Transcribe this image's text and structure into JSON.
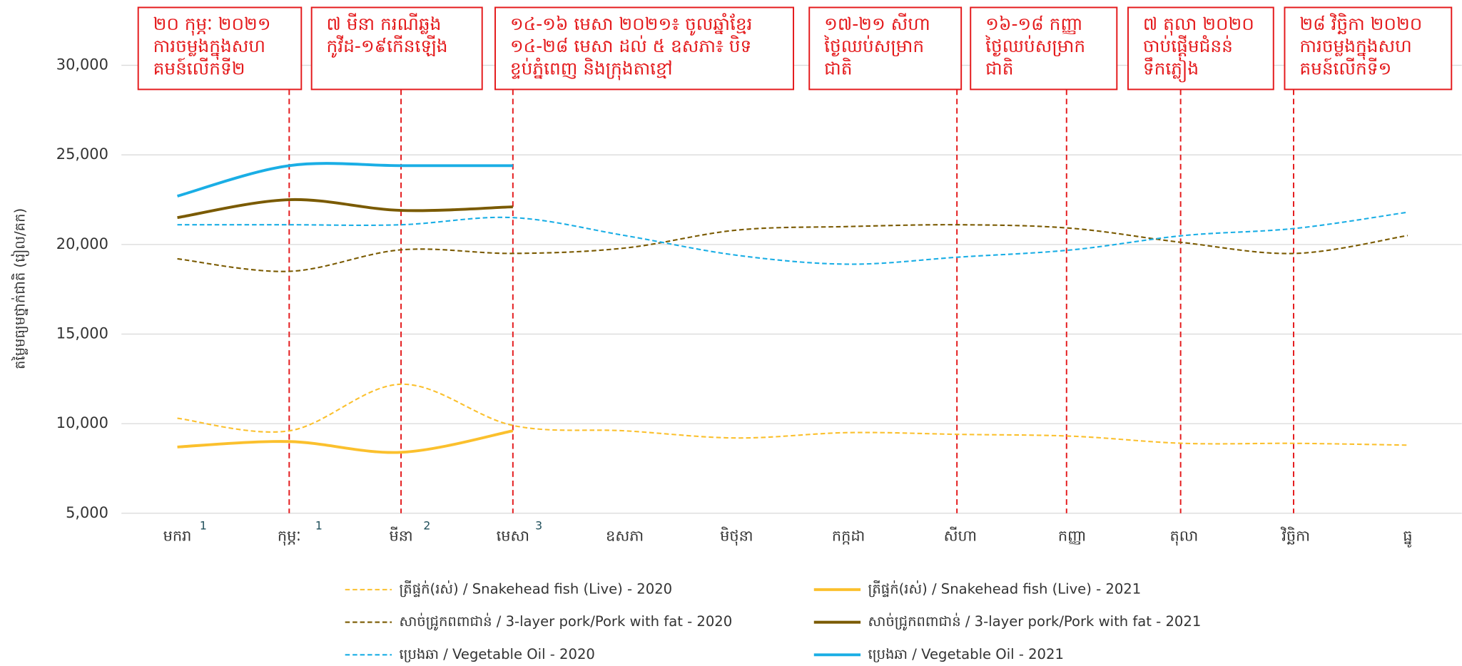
{
  "chart_data": {
    "type": "line",
    "y_label": "តម្លៃមធ្យមថ្នាក់ជាតិ (រៀល/គក)",
    "categories": [
      "មករា",
      "កុម្ភៈ",
      "មីនា",
      "មេសា",
      "ឧសភា",
      "មិថុនា",
      "កក្កដា",
      "សីហា",
      "កញ្ញា",
      "តុលា",
      "វិច្ឆិកា",
      "ធ្នូ"
    ],
    "category_notes": [
      "1",
      "1",
      "2",
      "3",
      null,
      null,
      null,
      null,
      null,
      null,
      null,
      null
    ],
    "ylim": [
      5000,
      32500
    ],
    "yticks": [
      {
        "value": 5000,
        "label": "5,000"
      },
      {
        "value": 10000,
        "label": "10,000"
      },
      {
        "value": 15000,
        "label": "15,000"
      },
      {
        "value": 20000,
        "label": "20,000"
      },
      {
        "value": 25000,
        "label": "25,000"
      },
      {
        "value": 30000,
        "label": "30,000"
      }
    ],
    "grid": true,
    "series": [
      {
        "name": "ត្រីផ្ទក់(រស់) / Snakehead fish (Live) - 2020",
        "color": "#fbc02d",
        "dashed": true,
        "values": [
          10300,
          9600,
          12200,
          9900,
          9600,
          9200,
          9500,
          9400,
          9300,
          8900,
          8900,
          8800
        ]
      },
      {
        "name": "ត្រីផ្ទក់(រស់) / Snakehead fish (Live) - 2021",
        "color": "#fbc02d",
        "dashed": false,
        "values": [
          8700,
          9000,
          8400,
          9600,
          null,
          null,
          null,
          null,
          null,
          null,
          null,
          null
        ]
      },
      {
        "name": "សាច់ជ្រូកពពាជាន់ /  3-layer pork/Pork with fat - 2020",
        "color": "#7a5a00",
        "dashed": true,
        "values": [
          19200,
          18500,
          19700,
          19500,
          19800,
          20800,
          21000,
          21100,
          20900,
          20100,
          19500,
          20500
        ]
      },
      {
        "name": "សាច់ជ្រូកពពាជាន់ /  3-layer pork/Pork with fat - 2021",
        "color": "#7a5a00",
        "dashed": false,
        "values": [
          21500,
          22500,
          21900,
          22100,
          null,
          null,
          null,
          null,
          null,
          null,
          null,
          null
        ]
      },
      {
        "name": "ប្រេងឆា / Vegetable Oil - 2020",
        "color": "#1aaee5",
        "dashed": true,
        "values": [
          21100,
          21100,
          21100,
          21500,
          20500,
          19400,
          18900,
          19300,
          19700,
          20500,
          20900,
          21800
        ]
      },
      {
        "name": "ប្រេងឆា / Vegetable Oil - 2021",
        "color": "#1aaee5",
        "dashed": false,
        "values": [
          22700,
          24400,
          24400,
          24400,
          null,
          null,
          null,
          null,
          null,
          null,
          null,
          null
        ]
      }
    ],
    "annotations": [
      {
        "x": 1,
        "lines": [
          "២០ កុម្ភៈ ២០២១",
          "ការចម្លងក្នុងសហ",
          "គមន៍លើកទី២"
        ]
      },
      {
        "x": 2,
        "lines": [
          "៧ មីនា ករណីឆ្លង",
          "កូវីដ-១៩កើនឡើង"
        ]
      },
      {
        "x": 3,
        "lines": [
          "១៤-១៦ មេសា ២០២១៖ ចូលឆ្នាំខ្មែរ",
          "១៤-២៨ មេសា ដល់ ៥ ឧសភា៖ បិទ",
          "ខ្ទប់ភ្នំពេញ និងក្រុងតាខ្មៅ"
        ]
      },
      {
        "x": 6.97,
        "lines": [
          "១៧-២១ សីហា",
          "ថ្ងៃឈប់សម្រាក",
          "ជាតិ"
        ]
      },
      {
        "x": 7.95,
        "lines": [
          "១៦-១៨ កញ្ញា",
          "ថ្ងៃឈប់សម្រាក",
          "ជាតិ"
        ]
      },
      {
        "x": 8.97,
        "lines": [
          "៧ តុលា ២០២០",
          "ចាប់ផ្តើមជំនន់",
          "ទឹកភ្លៀង"
        ]
      },
      {
        "x": 9.98,
        "lines": [
          "២៨ វិច្ឆិកា ២០២០",
          "ការចម្លងក្នុងសហ",
          "គមន៍លើកទី១"
        ]
      }
    ]
  }
}
